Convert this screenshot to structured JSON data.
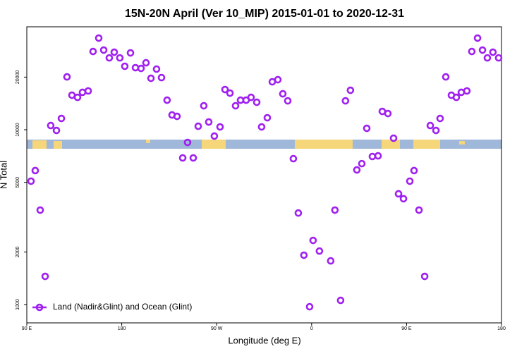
{
  "chart_data": {
    "type": "scatter",
    "title": "15N-20N April (Ver 10_MIP)   2015-01-01 to 2020-12-31",
    "x_label": "Longitude (deg E)",
    "y_label": "N Total",
    "log_y": true,
    "legend": "bottom-left",
    "xlim": [
      90,
      540
    ],
    "ylim": [
      786,
      38800
    ],
    "xticks": [
      {
        "value": 90,
        "label": "90 E"
      },
      180,
      {
        "value": 270,
        "label": "90 W"
      },
      {
        "value": 360,
        "label": "0"
      },
      {
        "value": 450,
        "label": "90 E"
      },
      {
        "value": 540,
        "label": "180"
      }
    ],
    "yticks": [
      1000,
      2000,
      5000,
      10000,
      20000
    ],
    "series": [
      {
        "name": "Land (Nadir&Glint) and Ocean (Glint)",
        "color": "#a020f0",
        "x": [
          94.0,
          98.0,
          102.7,
          107.4,
          112.7,
          118.1,
          122.8,
          128.1,
          132.8,
          138.1,
          142.8,
          148.2,
          152.8,
          158.2,
          162.9,
          168.2,
          172.9,
          178.2,
          182.9,
          188.3,
          193.0,
          198.3,
          203.0,
          207.7,
          213.0,
          217.7,
          223.0,
          227.7,
          232.4,
          237.8,
          242.4,
          247.8,
          252.5,
          257.8,
          262.5,
          267.8,
          273.2,
          277.9,
          282.6,
          287.9,
          292.6,
          297.9,
          302.6,
          308.0,
          312.6,
          318.0,
          322.7,
          328.0,
          332.7,
          337.4,
          342.7,
          347.4,
          352.7,
          358.1,
          361.4,
          367.4,
          378.1,
          382.1,
          387.5,
          392.1,
          396.8,
          402.9,
          407.6,
          412.3,
          417.6,
          423.0,
          427.0,
          432.3,
          437.7,
          442.4,
          447.1,
          453.1,
          457.1,
          461.8,
          467.2,
          472.5,
          477.9,
          481.8,
          487.2,
          492.5,
          497.2,
          501.9,
          507.2,
          511.9,
          517.3,
          522.0,
          526.6,
          531.9,
          537.3
        ],
        "values": [
          5080,
          5840,
          3470,
          1450,
          10570,
          9910,
          11600,
          20050,
          15760,
          15320,
          16370,
          16670,
          28030,
          33440,
          28550,
          25760,
          27770,
          25760,
          23070,
          27510,
          22640,
          22430,
          24150,
          19690,
          22230,
          19870,
          14760,
          12150,
          11930,
          6900,
          8460,
          6900,
          10470,
          13710,
          11070,
          9200,
          10380,
          16980,
          16200,
          13710,
          14760,
          14760,
          15320,
          14360,
          10380,
          11710,
          18800,
          19330,
          16050,
          14630,
          6830,
          3340,
          1916,
          972,
          2328,
          2024,
          1778,
          3470,
          1057,
          14630,
          16820,
          5890,
          6400,
          10190,
          7030,
          7090,
          12730,
          12380,
          8950,
          4300,
          4030,
          5080,
          5840,
          3470,
          1450,
          10570,
          9910,
          11600,
          20050,
          15760,
          15320,
          16370,
          16670,
          28030,
          33440,
          28550,
          25760,
          27770,
          25760
        ]
      }
    ]
  }
}
